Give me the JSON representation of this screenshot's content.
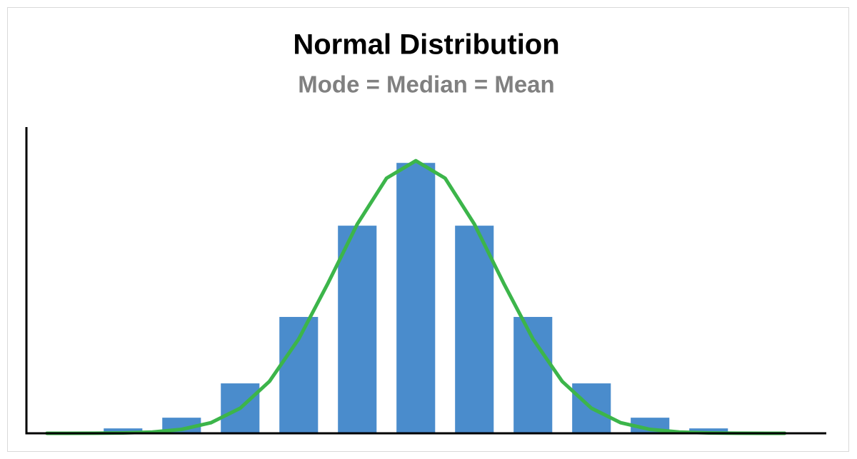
{
  "chart_data": {
    "type": "bar",
    "title": "Normal Distribution",
    "subtitle": "Mode = Median = Mean",
    "categories": [
      null,
      null,
      null,
      null,
      null,
      null,
      null,
      null,
      null,
      null,
      null
    ],
    "values": [
      1.6,
      5.1,
      16.3,
      38,
      67.8,
      88.3,
      67.8,
      38,
      16.3,
      5.1,
      1.6
    ],
    "color": "#4a8ccc",
    "xlim": [
      -1.65,
      12.01
    ],
    "ylim": [
      0,
      100
    ],
    "curve": {
      "type": "line",
      "color": "#3cb54a",
      "x": [
        -1.3,
        -1,
        -0.5,
        0,
        0.5,
        1,
        1.5,
        2,
        2.5,
        3,
        3.5,
        4,
        4.5,
        5,
        5.5,
        6,
        6.5,
        7,
        7.5,
        8,
        8.5,
        9,
        9.5,
        10,
        10.5,
        11,
        11.3
      ],
      "values": [
        0.0,
        0.0,
        0.03,
        0.12,
        0.41,
        1.28,
        3.45,
        8.18,
        16.95,
        30.8,
        49.0,
        68.3,
        83.3,
        89,
        83.3,
        68.3,
        49.0,
        30.8,
        16.95,
        8.18,
        3.45,
        1.28,
        0.41,
        0.12,
        0.03,
        0.0,
        0.0
      ]
    }
  }
}
